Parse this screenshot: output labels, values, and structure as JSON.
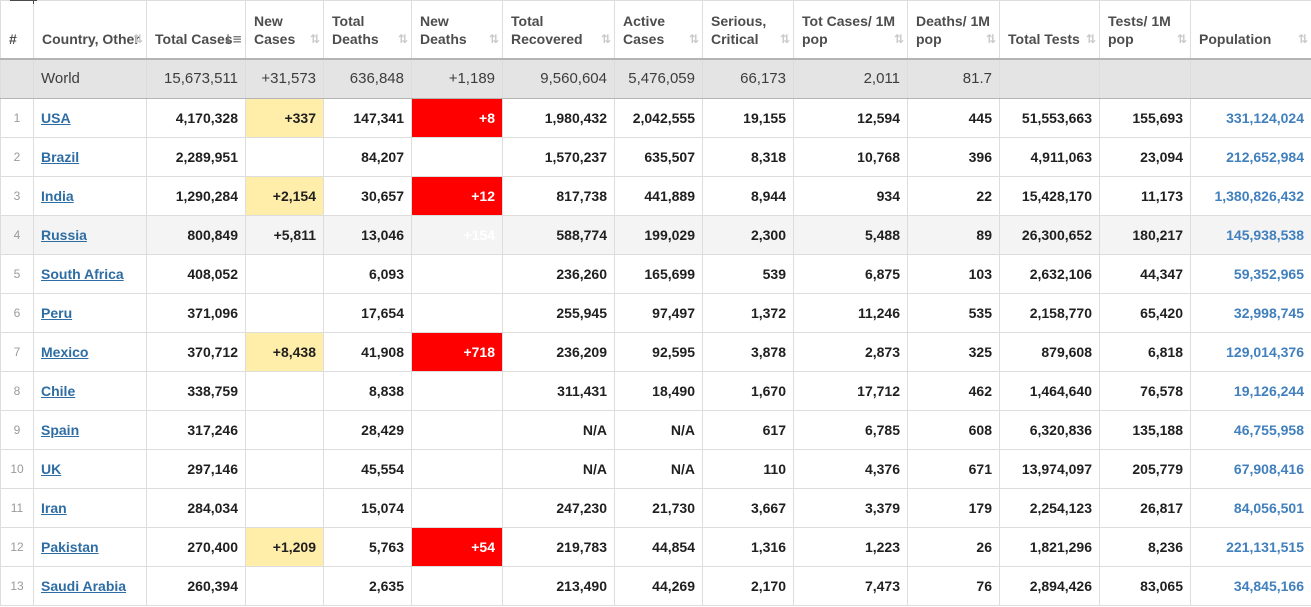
{
  "colors": {
    "highlight_yellow": "#FFEEAA",
    "highlight_red": "#FF0000",
    "country_link_blue": "#2e6da4",
    "population_blue": "#4180bd",
    "world_row_gray": "#e4e4e4",
    "shaded_row_gray": "#f4f4f4"
  },
  "header": {
    "columns": [
      {
        "key": "rank",
        "label": "#",
        "sort": "none"
      },
      {
        "key": "country",
        "label": "Country, Other",
        "sort": "both"
      },
      {
        "key": "total-cases",
        "label": "Total Cases",
        "sort": "desc"
      },
      {
        "key": "new-cases",
        "label": "New Cases",
        "sort": "both"
      },
      {
        "key": "total-deaths",
        "label": "Total Deaths",
        "sort": "both"
      },
      {
        "key": "new-deaths",
        "label": "New Deaths",
        "sort": "both"
      },
      {
        "key": "total-recovered",
        "label": "Total Recovered",
        "sort": "both"
      },
      {
        "key": "active-cases",
        "label": "Active Cases",
        "sort": "both"
      },
      {
        "key": "serious-critical",
        "label": "Serious, Critical",
        "sort": "both"
      },
      {
        "key": "tot-cases-1m",
        "label": "Tot Cases/ 1M pop",
        "sort": "both"
      },
      {
        "key": "deaths-1m",
        "label": "Deaths/ 1M pop",
        "sort": "both"
      },
      {
        "key": "total-tests",
        "label": "Total Tests",
        "sort": "both"
      },
      {
        "key": "tests-1m",
        "label": "Tests/ 1M pop",
        "sort": "both"
      },
      {
        "key": "population",
        "label": "Population",
        "sort": "both"
      }
    ]
  },
  "world_row": {
    "label": "World",
    "values": [
      "15,673,511",
      "+31,573",
      "636,848",
      "+1,189",
      "9,560,604",
      "5,476,059",
      "66,173",
      "2,011",
      "81.7",
      "",
      "",
      ""
    ]
  },
  "rows": [
    {
      "rank": "1",
      "country": "USA",
      "values": [
        "4,170,328",
        "+337",
        "147,341",
        "+8",
        "1,980,432",
        "2,042,555",
        "19,155",
        "12,594",
        "445",
        "51,553,663",
        "155,693",
        "331,124,024"
      ],
      "highlights": {
        "1": "yellow",
        "3": "red"
      }
    },
    {
      "rank": "2",
      "country": "Brazil",
      "values": [
        "2,289,951",
        "",
        "84,207",
        "",
        "1,570,237",
        "635,507",
        "8,318",
        "10,768",
        "396",
        "4,911,063",
        "23,094",
        "212,652,984"
      ],
      "highlights": {}
    },
    {
      "rank": "3",
      "country": "India",
      "values": [
        "1,290,284",
        "+2,154",
        "30,657",
        "+12",
        "817,738",
        "441,889",
        "8,944",
        "934",
        "22",
        "15,428,170",
        "11,173",
        "1,380,826,432"
      ],
      "highlights": {
        "1": "yellow",
        "3": "red"
      }
    },
    {
      "rank": "4",
      "country": "Russia",
      "shaded": true,
      "values": [
        "800,849",
        "+5,811",
        "13,046",
        "+154",
        "588,774",
        "199,029",
        "2,300",
        "5,488",
        "89",
        "26,300,652",
        "180,217",
        "145,938,538"
      ],
      "highlights": {
        "1": "yellow",
        "3": "red"
      }
    },
    {
      "rank": "5",
      "country": "South Africa",
      "values": [
        "408,052",
        "",
        "6,093",
        "",
        "236,260",
        "165,699",
        "539",
        "6,875",
        "103",
        "2,632,106",
        "44,347",
        "59,352,965"
      ],
      "highlights": {}
    },
    {
      "rank": "6",
      "country": "Peru",
      "values": [
        "371,096",
        "",
        "17,654",
        "",
        "255,945",
        "97,497",
        "1,372",
        "11,246",
        "535",
        "2,158,770",
        "65,420",
        "32,998,745"
      ],
      "highlights": {}
    },
    {
      "rank": "7",
      "country": "Mexico",
      "values": [
        "370,712",
        "+8,438",
        "41,908",
        "+718",
        "236,209",
        "92,595",
        "3,878",
        "2,873",
        "325",
        "879,608",
        "6,818",
        "129,014,376"
      ],
      "highlights": {
        "1": "yellow",
        "3": "red"
      }
    },
    {
      "rank": "8",
      "country": "Chile",
      "values": [
        "338,759",
        "",
        "8,838",
        "",
        "311,431",
        "18,490",
        "1,670",
        "17,712",
        "462",
        "1,464,640",
        "76,578",
        "19,126,244"
      ],
      "highlights": {}
    },
    {
      "rank": "9",
      "country": "Spain",
      "values": [
        "317,246",
        "",
        "28,429",
        "",
        "N/A",
        "N/A",
        "617",
        "6,785",
        "608",
        "6,320,836",
        "135,188",
        "46,755,958"
      ],
      "highlights": {}
    },
    {
      "rank": "10",
      "country": "UK",
      "values": [
        "297,146",
        "",
        "45,554",
        "",
        "N/A",
        "N/A",
        "110",
        "4,376",
        "671",
        "13,974,097",
        "205,779",
        "67,908,416"
      ],
      "highlights": {}
    },
    {
      "rank": "11",
      "country": "Iran",
      "values": [
        "284,034",
        "",
        "15,074",
        "",
        "247,230",
        "21,730",
        "3,667",
        "3,379",
        "179",
        "2,254,123",
        "26,817",
        "84,056,501"
      ],
      "highlights": {}
    },
    {
      "rank": "12",
      "country": "Pakistan",
      "values": [
        "270,400",
        "+1,209",
        "5,763",
        "+54",
        "219,783",
        "44,854",
        "1,316",
        "1,223",
        "26",
        "1,821,296",
        "8,236",
        "221,131,515"
      ],
      "highlights": {
        "1": "yellow",
        "3": "red"
      }
    },
    {
      "rank": "13",
      "country": "Saudi Arabia",
      "values": [
        "260,394",
        "",
        "2,635",
        "",
        "213,490",
        "44,269",
        "2,170",
        "7,473",
        "76",
        "2,894,426",
        "83,065",
        "34,845,166"
      ],
      "highlights": {}
    }
  ]
}
